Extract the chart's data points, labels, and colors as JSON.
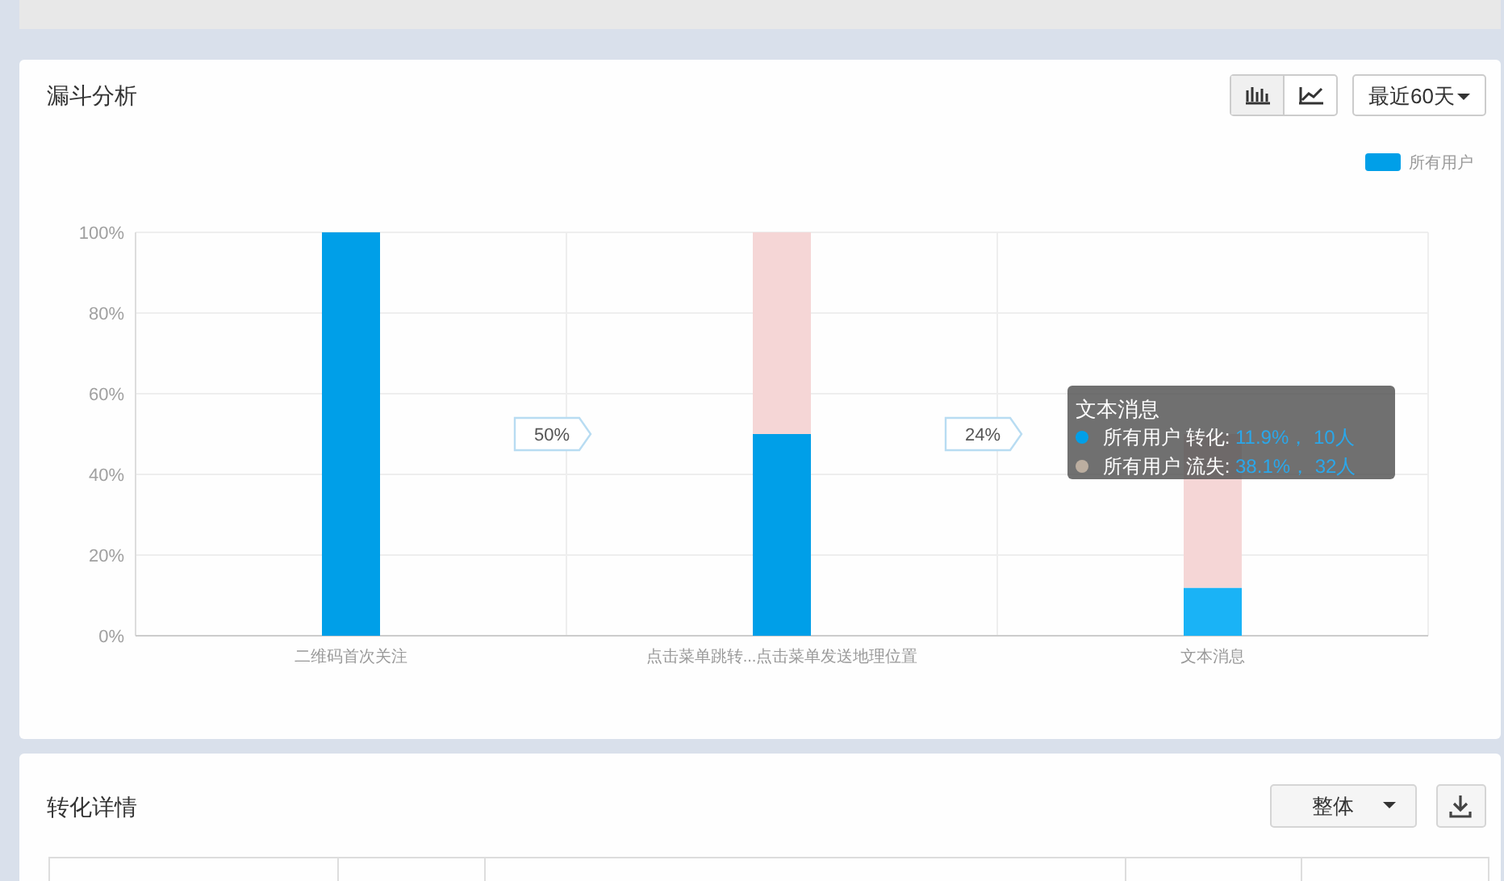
{
  "chart_data": {
    "type": "bar",
    "title": "漏斗分析",
    "categories": [
      "二维码首次关注",
      "点击菜单跳转...点击菜单发送地理位置",
      "文本消息"
    ],
    "stacked": true,
    "series": [
      {
        "name": "所有用户",
        "color": "#009fe8",
        "colors": [
          "#009fe8",
          "#009fe8",
          "#1ab3f6"
        ],
        "values": [
          100,
          50,
          11.9
        ]
      },
      {
        "color": "#f5d6d6",
        "values": [
          0,
          50,
          38.1
        ]
      }
    ],
    "ylim": [
      0,
      100
    ],
    "yticks": [
      {
        "value": 0,
        "label": "0%"
      },
      {
        "value": 20,
        "label": "20%"
      },
      {
        "value": 40,
        "label": "40%"
      },
      {
        "value": 60,
        "label": "60%"
      },
      {
        "value": 80,
        "label": "80%"
      },
      {
        "value": 100,
        "label": "100%"
      }
    ],
    "grid": true,
    "legend": "top right",
    "annotations": [
      "50%",
      "24%",
      "文本消息",
      "所有用户 转化: 11.9%， 10人",
      "所有用户 流失: 38.1%， 32人",
      "最近60天",
      "转化详情",
      "整体"
    ]
  }
}
